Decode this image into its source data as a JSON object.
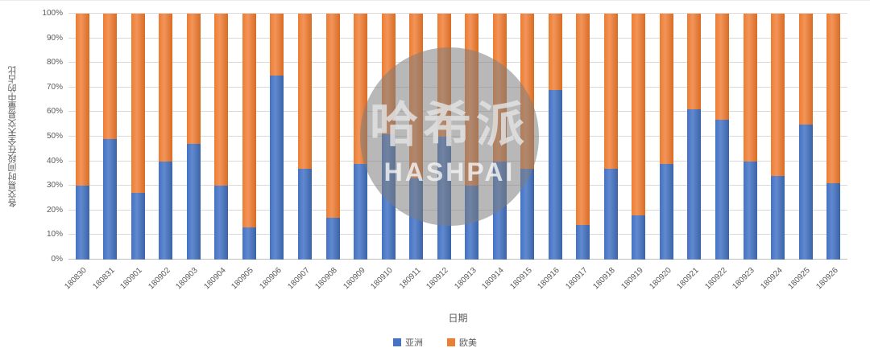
{
  "chart_data": {
    "type": "bar",
    "stacked": true,
    "percent": true,
    "title": "",
    "xlabel": "日期",
    "ylabel": "各交易时间段在全天交易量中的占比",
    "ylim": [
      0,
      100
    ],
    "grid": true,
    "legend_position": "bottom",
    "y_ticks": [
      "0%",
      "10%",
      "20%",
      "30%",
      "40%",
      "50%",
      "60%",
      "70%",
      "80%",
      "90%",
      "100%"
    ],
    "categories": [
      "180830",
      "180831",
      "180901",
      "180902",
      "180903",
      "180904",
      "180905",
      "180906",
      "180907",
      "180908",
      "180909",
      "180910",
      "180911",
      "180912",
      "180913",
      "180914",
      "180915",
      "180916",
      "180917",
      "180918",
      "180919",
      "180920",
      "180921",
      "180922",
      "180923",
      "180924",
      "180925",
      "180926"
    ],
    "series": [
      {
        "name": "亚洲",
        "color": "#4472C4",
        "values": [
          30,
          49,
          27,
          40,
          47,
          30,
          13,
          75,
          37,
          17,
          39,
          51,
          33,
          50,
          30,
          40,
          37,
          69,
          14,
          37,
          18,
          39,
          61,
          57,
          40,
          34,
          55,
          31
        ]
      },
      {
        "name": "欧美",
        "color": "#ED7D31",
        "values": [
          70,
          51,
          73,
          60,
          53,
          70,
          87,
          25,
          63,
          83,
          61,
          49,
          67,
          50,
          70,
          60,
          63,
          31,
          86,
          63,
          82,
          61,
          39,
          43,
          60,
          66,
          45,
          69
        ]
      }
    ]
  },
  "watermark": {
    "line1": "哈希派",
    "line2": "HASHPAI"
  }
}
